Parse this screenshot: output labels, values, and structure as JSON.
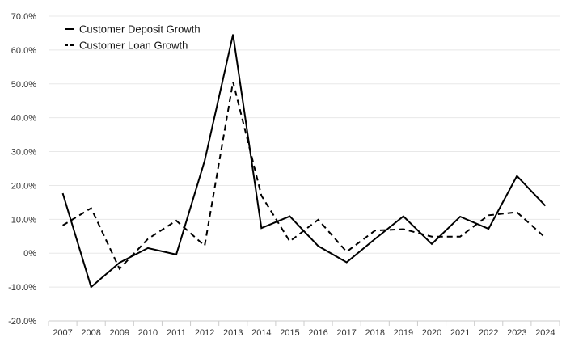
{
  "chart_data": {
    "type": "line",
    "categories": [
      "2007",
      "2008",
      "2009",
      "2010",
      "2011",
      "2012",
      "2013",
      "2014",
      "2015",
      "2016",
      "2017",
      "2018",
      "2019",
      "2020",
      "2021",
      "2022",
      "2023",
      "2024"
    ],
    "series": [
      {
        "name": "Customer Deposit Growth",
        "values": [
          17.7,
          -10.0,
          -2.8,
          1.5,
          -0.4,
          27.3,
          64.6,
          7.4,
          10.9,
          2.1,
          -2.7,
          4.2,
          10.9,
          2.7,
          10.8,
          7.2,
          22.8,
          14.0
        ],
        "style": "solid",
        "color": "#000000"
      },
      {
        "name": "Customer Loan Growth",
        "values": [
          8.2,
          13.3,
          -4.6,
          4.2,
          9.6,
          2.2,
          50.6,
          17.0,
          3.5,
          9.9,
          0.4,
          6.7,
          7.1,
          4.9,
          4.9,
          11.2,
          12.1,
          4.6
        ],
        "style": "dashed",
        "color": "#000000"
      }
    ],
    "yticks": [
      -20,
      -10,
      0,
      10,
      20,
      30,
      40,
      50,
      60,
      70
    ],
    "ytick_labels": [
      "-20.0%",
      "-10.0%",
      "0%",
      "10.0%",
      "20.0%",
      "30.0%",
      "40.0%",
      "50.0%",
      "60.0%",
      "70.0%"
    ],
    "ylim": [
      -20,
      70
    ],
    "grid": true,
    "legend_position": "top-left",
    "title": "",
    "xlabel": "",
    "ylabel": ""
  },
  "colors": {
    "grid": "#e8e8e8",
    "axis": "#cccccc",
    "text": "#333333"
  }
}
